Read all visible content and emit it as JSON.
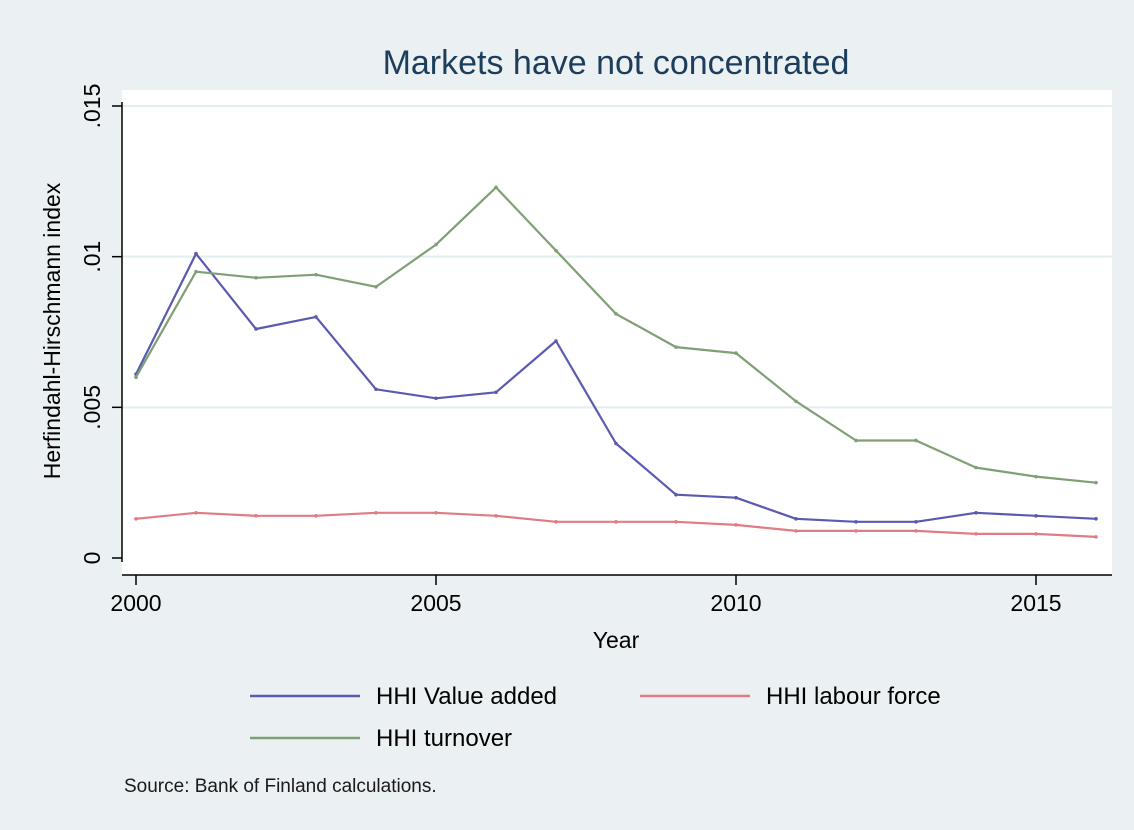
{
  "chart_data": {
    "type": "line",
    "title": "Markets have not concentrated",
    "xlabel": "Year",
    "ylabel": "Herfindahl-Hirschmann index",
    "x": [
      2000,
      2001,
      2002,
      2003,
      2004,
      2005,
      2006,
      2007,
      2008,
      2009,
      2010,
      2011,
      2012,
      2013,
      2014,
      2015,
      2016
    ],
    "xlim": [
      2000,
      2016.5
    ],
    "ylim": [
      0,
      0.015
    ],
    "x_ticks": [
      "2000",
      "2005",
      "2010",
      "2015"
    ],
    "x_tick_values": [
      2000,
      2005,
      2010,
      2015
    ],
    "y_ticks": [
      "0",
      ".005",
      ".01",
      ".015"
    ],
    "y_tick_values": [
      0,
      0.005,
      0.01,
      0.015
    ],
    "grid": true,
    "legend_position": "bottom",
    "series": [
      {
        "name": "HHI Value added",
        "color": "#5a5ab0",
        "values": [
          0.0061,
          0.0101,
          0.0076,
          0.008,
          0.0056,
          0.0053,
          0.0055,
          0.0072,
          0.0038,
          0.0021,
          0.002,
          0.0013,
          0.0012,
          0.0012,
          0.0015,
          0.0014,
          0.0013
        ]
      },
      {
        "name": "HHI labour force",
        "color": "#e07c86",
        "values": [
          0.0013,
          0.0015,
          0.0014,
          0.0014,
          0.0015,
          0.0015,
          0.0014,
          0.0012,
          0.0012,
          0.0012,
          0.0011,
          0.0009,
          0.0009,
          0.0009,
          0.0008,
          0.0008,
          0.0007
        ]
      },
      {
        "name": "HHI turnover",
        "color": "#7f9f75",
        "values": [
          0.006,
          0.0095,
          0.0093,
          0.0094,
          0.009,
          0.0104,
          0.0123,
          0.0102,
          0.0081,
          0.007,
          0.0068,
          0.0052,
          0.0039,
          0.0039,
          0.003,
          0.0027,
          0.0025
        ]
      }
    ]
  },
  "footer": {
    "source": "Source: Bank of Finland calculations."
  },
  "colors": {
    "background_outer": "#ebf0f2",
    "plot_background": "#ffffff",
    "grid": "#e3eef0",
    "axis": "#000000",
    "title": "#1c3e5c"
  }
}
